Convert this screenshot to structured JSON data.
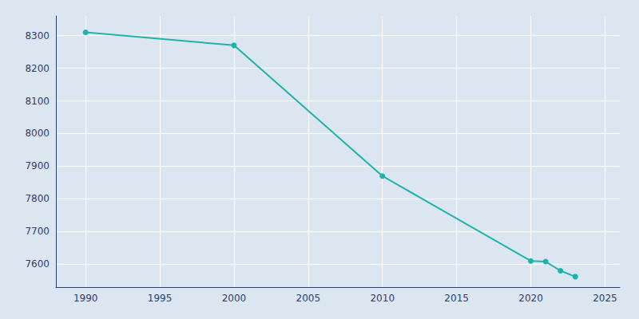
{
  "chart_data": {
    "type": "line",
    "x": [
      1990,
      2000,
      2010,
      2020,
      2021,
      2022,
      2023
    ],
    "values": [
      8310,
      8270,
      7870,
      7610,
      7608,
      7580,
      7562
    ],
    "color": "#20b2aa",
    "marker": "circle",
    "xlim": [
      1988,
      2026
    ],
    "xticks": [
      1990,
      1995,
      2000,
      2005,
      2010,
      2015,
      2020,
      2025
    ],
    "ylim": [
      7530,
      8360
    ],
    "yticks": [
      7600,
      7700,
      7800,
      7900,
      8000,
      8100,
      8200,
      8300
    ],
    "grid": true
  }
}
